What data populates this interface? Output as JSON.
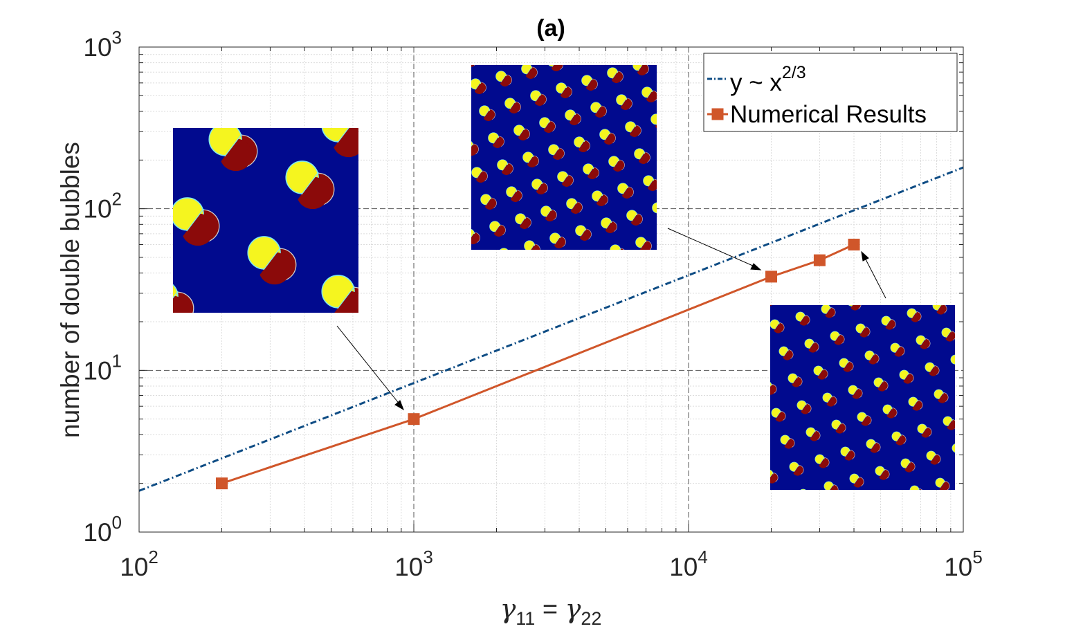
{
  "chart_data": {
    "type": "line",
    "title": "(a)",
    "xlabel": {
      "base": "γ",
      "sub1": "11",
      "eq": " = ",
      "base2": "γ",
      "sub2": "22"
    },
    "ylabel": "number of double bubbles",
    "x_scale": "log",
    "y_scale": "log",
    "xlim": [
      100,
      100000
    ],
    "ylim": [
      1,
      1000
    ],
    "x_ticks": [
      {
        "value": 100,
        "base": "10",
        "exp": "2"
      },
      {
        "value": 1000,
        "base": "10",
        "exp": "3"
      },
      {
        "value": 10000,
        "base": "10",
        "exp": "4"
      },
      {
        "value": 100000,
        "base": "10",
        "exp": "5"
      }
    ],
    "y_ticks": [
      {
        "value": 1,
        "base": "10",
        "exp": "0"
      },
      {
        "value": 10,
        "base": "10",
        "exp": "1"
      },
      {
        "value": 100,
        "base": "10",
        "exp": "2"
      },
      {
        "value": 1000,
        "base": "10",
        "exp": "3"
      }
    ],
    "grid": {
      "major": true,
      "minor": true
    },
    "legend_position": "top-right",
    "series": [
      {
        "name": "y ~ x",
        "name_exp": "2/3",
        "style": "dash-dot",
        "color": "#0e4c84",
        "x": [
          100,
          100000
        ],
        "y": [
          1.8,
          180
        ]
      },
      {
        "name": "Numerical Results",
        "style": "solid-square-markers",
        "color": "#d0562a",
        "x": [
          200,
          1000,
          20000,
          30000,
          40000
        ],
        "y": [
          2,
          5,
          38,
          48,
          60
        ]
      }
    ],
    "insets": [
      {
        "name": "inset-gamma-1000",
        "pattern": "sparse double bubbles",
        "points_to": {
          "x": 1000,
          "y": 5
        }
      },
      {
        "name": "inset-gamma-20000",
        "pattern": "dense double bubbles",
        "points_to": {
          "x": 20000,
          "y": 38
        }
      },
      {
        "name": "inset-gamma-40000",
        "pattern": "dense double bubbles",
        "points_to": {
          "x": 40000,
          "y": 60
        }
      }
    ],
    "colors": {
      "background": "#010a8e",
      "phase_a": "#f5f51f",
      "phase_b": "#8b0a0a",
      "rim": "#7ee8ee"
    }
  }
}
